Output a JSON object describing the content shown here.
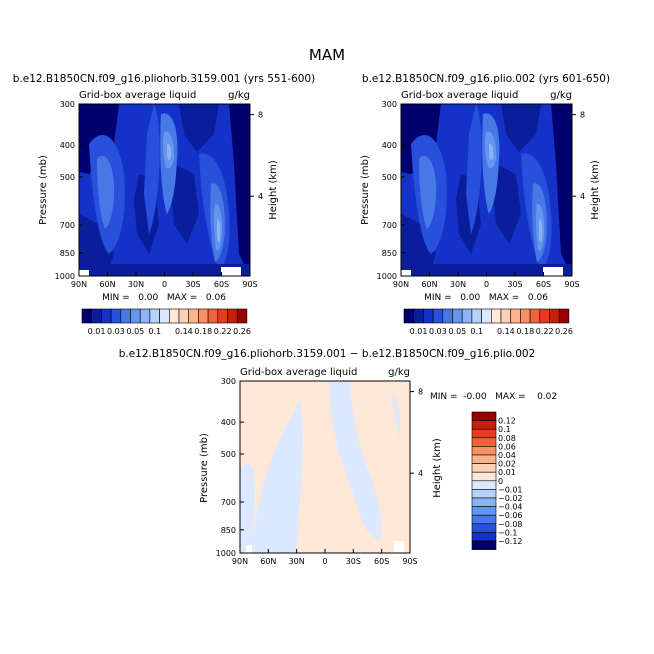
{
  "figure": {
    "title": "MAM"
  },
  "chart_data": [
    {
      "type": "heatmap",
      "title": "b.e12.B1850CN.f09_g16.pliohorb.3159.001 (yrs 551-600)",
      "subtitle_left": "Grid-box average liquid",
      "subtitle_right": "g/kg",
      "ylabel": "Pressure (mb)",
      "ylabel_right": "Height (km)",
      "x_ticks": [
        "90N",
        "60N",
        "30N",
        "0",
        "30S",
        "60S",
        "90S"
      ],
      "y_ticks": [
        "300",
        "400",
        "500",
        "700",
        "850",
        "1000"
      ],
      "y_ticks_right": [
        "8",
        "4"
      ],
      "stats": "MIN =   0.00   MAX =   0.06",
      "colorbar": [
        "0.01",
        "0.03",
        "0.05",
        "0.1",
        "0.14",
        "0.18",
        "0.22",
        "0.26"
      ],
      "colorbar_colors": [
        "#00006e",
        "#0a1e9b",
        "#1432c8",
        "#2850dc",
        "#4678e6",
        "#6496f0",
        "#8cb4f5",
        "#b4d2fa",
        "#dce8ff",
        "#ffe8d8",
        "#ffd0b4",
        "#fcb48c",
        "#f89064",
        "#f0643c",
        "#e63c1e",
        "#c81e0a",
        "#9b0000"
      ]
    },
    {
      "type": "heatmap",
      "title": "b.e12.B1850CN.f09_g16.plio.002 (yrs 601-650)",
      "subtitle_left": "Grid-box average liquid",
      "subtitle_right": "g/kg",
      "ylabel": "Pressure (mb)",
      "ylabel_right": "Height (km)",
      "x_ticks": [
        "90N",
        "60N",
        "30N",
        "0",
        "30S",
        "60S",
        "90S"
      ],
      "y_ticks": [
        "300",
        "400",
        "500",
        "700",
        "850",
        "1000"
      ],
      "y_ticks_right": [
        "8",
        "4"
      ],
      "stats": "MIN =   0.00   MAX =   0.06",
      "colorbar": [
        "0.01",
        "0.03",
        "0.05",
        "0.1",
        "0.14",
        "0.18",
        "0.22",
        "0.26"
      ]
    },
    {
      "type": "heatmap",
      "title": "b.e12.B1850CN.f09_g16.pliohorb.3159.001 − b.e12.B1850CN.f09_g16.plio.002",
      "subtitle_left": "Grid-box average liquid",
      "subtitle_right": "g/kg",
      "ylabel": "Pressure (mb)",
      "ylabel_right": "Height (km)",
      "x_ticks": [
        "90N",
        "60N",
        "30N",
        "0",
        "30S",
        "60S",
        "90S"
      ],
      "y_ticks": [
        "300",
        "400",
        "500",
        "700",
        "850",
        "1000"
      ],
      "y_ticks_right": [
        "8",
        "4"
      ],
      "stats": "MIN =  -0.00   MAX =    0.02",
      "colorbar": [
        "0.12",
        "0.1",
        "0.08",
        "0.06",
        "0.04",
        "0.02",
        "0.01",
        "0",
        "−0.01",
        "−0.02",
        "−0.04",
        "−0.06",
        "−0.08",
        "−0.1",
        "−0.12"
      ],
      "colorbar_colors": [
        "#9b0000",
        "#c81e0a",
        "#e63c1e",
        "#f0643c",
        "#f89064",
        "#fcb48c",
        "#ffd0b4",
        "#ffe8d8",
        "#dce8ff",
        "#b4d2fa",
        "#8cb4f5",
        "#6496f0",
        "#4678e6",
        "#2850dc",
        "#1432c8",
        "#00006e"
      ]
    }
  ]
}
